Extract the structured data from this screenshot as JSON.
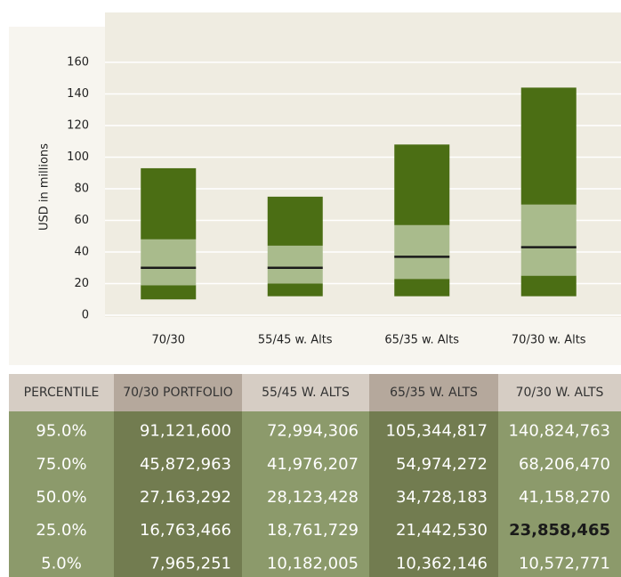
{
  "chart_data": {
    "type": "box",
    "y_label": "USD in millions",
    "categories": [
      "70/30",
      "55/45 w. Alts",
      "65/35 w. Alts",
      "70/30 w. Alts"
    ],
    "boxes": [
      {
        "p5": 10,
        "p25": 19,
        "p50": 30,
        "p75": 48,
        "p95": 93
      },
      {
        "p5": 12,
        "p25": 20,
        "p50": 30,
        "p75": 44,
        "p95": 75
      },
      {
        "p5": 12,
        "p25": 23,
        "p50": 37,
        "p75": 57,
        "p95": 108
      },
      {
        "p5": 12,
        "p25": 25,
        "p50": 43,
        "p75": 70,
        "p95": 144
      }
    ],
    "colors": {
      "outer": "#4b6e14",
      "inner": "#a9bb8c",
      "median": "#1a1a1a"
    },
    "ylim": [
      0,
      160
    ],
    "yticks": [
      0,
      20,
      40,
      60,
      80,
      100,
      120,
      140,
      160
    ],
    "grid": true
  },
  "table": {
    "header": [
      "PERCENTILE",
      "70/30 PORTFOLIO",
      "55/45 W. ALTS",
      "65/35 W. ALTS",
      "70/30 W. ALTS"
    ],
    "rows": [
      [
        "95.0%",
        "91,121,600",
        "72,994,306",
        "105,344,817",
        "140,824,763"
      ],
      [
        "75.0%",
        "45,872,963",
        "41,976,207",
        "54,974,272",
        "68,206,470"
      ],
      [
        "50.0%",
        "27,163,292",
        "28,123,428",
        "34,728,183",
        "41,158,270"
      ],
      [
        "25.0%",
        "16,763,466",
        "18,761,729",
        "21,442,530",
        "23,858,465"
      ],
      [
        "5.0%",
        "7,965,251",
        "10,182,005",
        "10,362,146",
        "10,572,771"
      ]
    ],
    "highlight": [
      3,
      4
    ]
  }
}
